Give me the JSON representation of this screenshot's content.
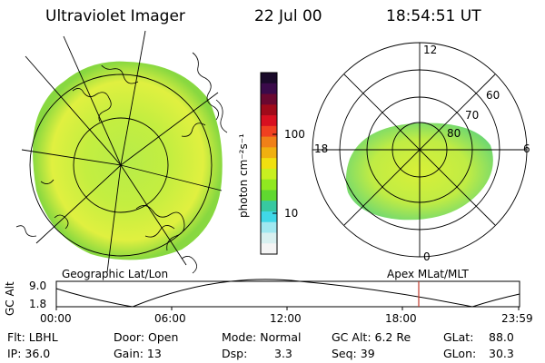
{
  "header": {
    "instrument": "Ultraviolet Imager",
    "date": "22 Jul 00",
    "time": "18:54:51 UT"
  },
  "colorbar": {
    "unit_label": "photon cm⁻²s⁻¹",
    "tick_100": "100",
    "tick_10": "10",
    "colors_top_to_bottom": [
      "#1a0a2a",
      "#3a0a4a",
      "#6a0830",
      "#a00a1a",
      "#d81020",
      "#f04020",
      "#f08018",
      "#f0b010",
      "#f0e010",
      "#c8f020",
      "#90e820",
      "#60d830",
      "#38c8a0",
      "#40d8e8",
      "#a0e8f0",
      "#d8f0f0",
      "#f4f4f4"
    ]
  },
  "left_panel": {
    "caption": "Geographic Lat/Lon"
  },
  "right_panel": {
    "caption": "Apex MLat/MLT",
    "mlt_labels": {
      "top": "12",
      "left": "18",
      "right": "6",
      "bottom": "0"
    },
    "mlat_labels": [
      "60",
      "70",
      "80"
    ]
  },
  "altitude_plot": {
    "ylabel": "GC Alt",
    "ytick_top": "9.0",
    "ytick_bottom": "1.8",
    "x_ticks": [
      "00:00",
      "06:00",
      "12:00",
      "18:00",
      "23:59"
    ],
    "marker_time": "18:54",
    "marker_color": "#c0392b"
  },
  "footer": {
    "filter": "Flt: LBHL",
    "door": "Door: Open",
    "mode": "Mode: Normal",
    "gc_alt": "GC Alt: 6.2 Re",
    "glat": "GLat:",
    "glat_val": "88.0",
    "ip": "IP: 36.0",
    "gain": "Gain: 13",
    "dsp": "Dsp:",
    "dsp_val": "3.3",
    "seq": "Seq: 39",
    "glon": "GLon:",
    "glon_val": "30.3"
  }
}
